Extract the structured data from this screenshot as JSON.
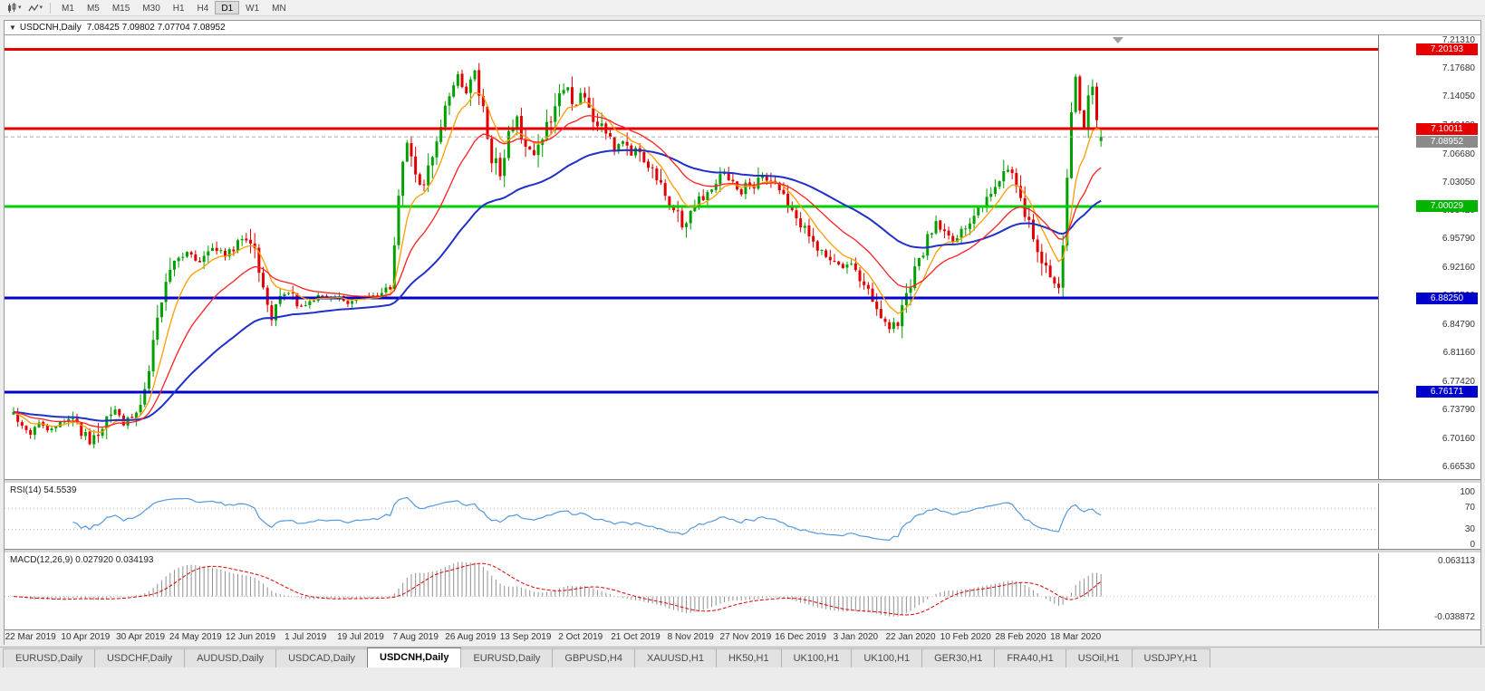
{
  "toolbar": {
    "timeframes": [
      "M1",
      "M5",
      "M15",
      "M30",
      "H1",
      "H4",
      "D1",
      "W1",
      "MN"
    ],
    "active_timeframe": "D1"
  },
  "chart": {
    "collapse_marker": "▼",
    "symbol_period": "USDCNH,Daily",
    "ohlc_text": "7.08425 7.09802 7.07704 7.08952",
    "open": "7.08425",
    "high": "7.09802",
    "low": "7.07704",
    "close": "7.08952"
  },
  "price_scale": {
    "ticks": [
      {
        "label": "7.21310",
        "price": 7.2131
      },
      {
        "label": "7.17680",
        "price": 7.1768
      },
      {
        "label": "7.14050",
        "price": 7.1405
      },
      {
        "label": "7.10420",
        "price": 7.1042
      },
      {
        "label": "7.06680",
        "price": 7.0668
      },
      {
        "label": "7.03050",
        "price": 7.0305
      },
      {
        "label": "6.99420",
        "price": 6.9942
      },
      {
        "label": "6.95790",
        "price": 6.9579
      },
      {
        "label": "6.92160",
        "price": 6.9216
      },
      {
        "label": "6.88530",
        "price": 6.8853
      },
      {
        "label": "6.84790",
        "price": 6.8479
      },
      {
        "label": "6.81160",
        "price": 6.8116
      },
      {
        "label": "6.77420",
        "price": 6.7742
      },
      {
        "label": "6.73790",
        "price": 6.7379
      },
      {
        "label": "6.70160",
        "price": 6.7016
      },
      {
        "label": "6.66530",
        "price": 6.6653
      }
    ],
    "badges": [
      {
        "label": "7.20193",
        "price": 7.20193,
        "bg": "#e60000",
        "fg": "#ffffff"
      },
      {
        "label": "7.10011",
        "price": 7.10011,
        "bg": "#e60000",
        "fg": "#ffffff"
      },
      {
        "label": "7.08952",
        "price": 7.08952,
        "bg": "#8a8a8a",
        "fg": "#ffffff"
      },
      {
        "label": "7.00029",
        "price": 7.00029,
        "bg": "#00b400",
        "fg": "#ffffff"
      },
      {
        "label": "6.88250",
        "price": 6.8825,
        "bg": "#0000cd",
        "fg": "#ffffff"
      },
      {
        "label": "6.76171",
        "price": 6.76171,
        "bg": "#0000cd",
        "fg": "#ffffff"
      }
    ]
  },
  "indicators": {
    "rsi": {
      "name": "RSI(14)",
      "value": "54.5539",
      "levels": [
        {
          "label": "100",
          "v": 100
        },
        {
          "label": "70",
          "v": 70
        },
        {
          "label": "30",
          "v": 30
        },
        {
          "label": "0",
          "v": 0
        }
      ]
    },
    "macd": {
      "name": "MACD(12,26,9)",
      "value": "0.027920 0.034193",
      "scale": [
        {
          "label": "0.063113",
          "v": 0.063113
        },
        {
          "label": "-0.038872",
          "v": -0.038872
        }
      ]
    }
  },
  "x_axis": {
    "labels": [
      {
        "label": "22 Mar 2019",
        "i": 4
      },
      {
        "label": "10 Apr 2019",
        "i": 17
      },
      {
        "label": "30 Apr 2019",
        "i": 30
      },
      {
        "label": "24 May 2019",
        "i": 43
      },
      {
        "label": "12 Jun 2019",
        "i": 56
      },
      {
        "label": "1 Jul 2019",
        "i": 69
      },
      {
        "label": "19 Jul 2019",
        "i": 82
      },
      {
        "label": "7 Aug 2019",
        "i": 95
      },
      {
        "label": "26 Aug 2019",
        "i": 108
      },
      {
        "label": "13 Sep 2019",
        "i": 121
      },
      {
        "label": "2 Oct 2019",
        "i": 134
      },
      {
        "label": "21 Oct 2019",
        "i": 147
      },
      {
        "label": "8 Nov 2019",
        "i": 160
      },
      {
        "label": "27 Nov 2019",
        "i": 173
      },
      {
        "label": "16 Dec 2019",
        "i": 186
      },
      {
        "label": "3 Jan 2020",
        "i": 199
      },
      {
        "label": "22 Jan 2020",
        "i": 212
      },
      {
        "label": "10 Feb 2020",
        "i": 225
      },
      {
        "label": "28 Feb 2020",
        "i": 238
      },
      {
        "label": "18 Mar 2020",
        "i": 251
      }
    ]
  },
  "tabs": {
    "active_index": 4,
    "items": [
      {
        "label": "EURUSD,Daily"
      },
      {
        "label": "USDCHF,Daily"
      },
      {
        "label": "AUDUSD,Daily"
      },
      {
        "label": "USDCAD,Daily"
      },
      {
        "label": "USDCNH,Daily"
      },
      {
        "label": "EURUSD,Daily"
      },
      {
        "label": "GBPUSD,H4"
      },
      {
        "label": "XAUUSD,H1"
      },
      {
        "label": "HK50,H1"
      },
      {
        "label": "UK100,H1"
      },
      {
        "label": "UK100,H1"
      },
      {
        "label": "GER30,H1"
      },
      {
        "label": "FRA40,H1"
      },
      {
        "label": "USOil,H1"
      },
      {
        "label": "USDJPY,H1"
      }
    ]
  },
  "chart_data": {
    "type": "candlestick",
    "symbol": "USDCNH",
    "timeframe": "Daily",
    "candle_count": 258,
    "price_range": [
      6.65,
      7.22
    ],
    "up_color": "#00a000",
    "down_color": "#e00000",
    "current_price": 7.08952,
    "hlines": [
      {
        "price": 7.20193,
        "color": "#e60000",
        "width": 3
      },
      {
        "price": 7.10011,
        "color": "#e60000",
        "width": 3
      },
      {
        "price": 7.00029,
        "color": "#00d000",
        "width": 3
      },
      {
        "price": 6.8825,
        "color": "#0000cd",
        "width": 3
      },
      {
        "price": 6.76171,
        "color": "#0000cd",
        "width": 3
      }
    ],
    "moving_averages": [
      {
        "period": 8,
        "type": "ema",
        "color": "#ff9c00"
      },
      {
        "period": 55,
        "type": "ema",
        "color": "#2030c8"
      },
      {
        "period": 21,
        "type": "ema",
        "color": "#ff2020"
      }
    ],
    "rsi_period": 14,
    "rsi_levels": [
      70,
      30
    ],
    "rsi_color": "#5599dd",
    "macd_params": {
      "fast": 12,
      "slow": 26,
      "signal": 9
    },
    "macd_bar_color": "#909090",
    "macd_signal_color": "#dd0000",
    "close_path": [
      [
        0,
        6.737
      ],
      [
        2,
        6.718
      ],
      [
        4,
        6.708
      ],
      [
        6,
        6.722
      ],
      [
        8,
        6.714
      ],
      [
        10,
        6.72
      ],
      [
        13,
        6.728
      ],
      [
        16,
        6.712
      ],
      [
        18,
        6.695
      ],
      [
        20,
        6.712
      ],
      [
        22,
        6.73
      ],
      [
        24,
        6.742
      ],
      [
        26,
        6.722
      ],
      [
        28,
        6.73
      ],
      [
        30,
        6.738
      ],
      [
        32,
        6.792
      ],
      [
        34,
        6.862
      ],
      [
        36,
        6.908
      ],
      [
        38,
        6.928
      ],
      [
        41,
        6.94
      ],
      [
        44,
        6.93
      ],
      [
        47,
        6.948
      ],
      [
        50,
        6.938
      ],
      [
        53,
        6.952
      ],
      [
        55,
        6.958
      ],
      [
        57,
        6.938
      ],
      [
        59,
        6.895
      ],
      [
        61,
        6.858
      ],
      [
        63,
        6.88
      ],
      [
        65,
        6.888
      ],
      [
        68,
        6.872
      ],
      [
        71,
        6.882
      ],
      [
        75,
        6.885
      ],
      [
        79,
        6.878
      ],
      [
        83,
        6.882
      ],
      [
        87,
        6.885
      ],
      [
        89,
        6.898
      ],
      [
        90,
        6.952
      ],
      [
        91,
        7.022
      ],
      [
        93,
        7.085
      ],
      [
        95,
        7.042
      ],
      [
        97,
        7.028
      ],
      [
        99,
        7.062
      ],
      [
        101,
        7.105
      ],
      [
        103,
        7.148
      ],
      [
        105,
        7.172
      ],
      [
        107,
        7.148
      ],
      [
        109,
        7.178
      ],
      [
        111,
        7.125
      ],
      [
        113,
        7.065
      ],
      [
        115,
        7.042
      ],
      [
        117,
        7.095
      ],
      [
        119,
        7.118
      ],
      [
        121,
        7.072
      ],
      [
        123,
        7.062
      ],
      [
        125,
        7.092
      ],
      [
        127,
        7.112
      ],
      [
        129,
        7.138
      ],
      [
        131,
        7.152
      ],
      [
        133,
        7.128
      ],
      [
        134,
        7.142
      ],
      [
        136,
        7.128
      ],
      [
        138,
        7.108
      ],
      [
        140,
        7.092
      ],
      [
        142,
        7.075
      ],
      [
        144,
        7.085
      ],
      [
        146,
        7.068
      ],
      [
        147,
        7.078
      ],
      [
        149,
        7.062
      ],
      [
        151,
        7.048
      ],
      [
        153,
        7.028
      ],
      [
        155,
        7.008
      ],
      [
        157,
        6.985
      ],
      [
        158,
        6.972
      ],
      [
        160,
        6.992
      ],
      [
        162,
        7.008
      ],
      [
        164,
        7.022
      ],
      [
        166,
        7.032
      ],
      [
        168,
        7.042
      ],
      [
        170,
        7.028
      ],
      [
        172,
        7.018
      ],
      [
        173,
        7.032
      ],
      [
        175,
        7.028
      ],
      [
        177,
        7.042
      ],
      [
        179,
        7.032
      ],
      [
        181,
        7.018
      ],
      [
        183,
        7.002
      ],
      [
        185,
        6.985
      ],
      [
        186,
        6.975
      ],
      [
        188,
        6.962
      ],
      [
        190,
        6.948
      ],
      [
        192,
        6.938
      ],
      [
        194,
        6.928
      ],
      [
        196,
        6.918
      ],
      [
        198,
        6.925
      ],
      [
        199,
        6.915
      ],
      [
        201,
        6.898
      ],
      [
        203,
        6.878
      ],
      [
        205,
        6.862
      ],
      [
        207,
        6.845
      ],
      [
        209,
        6.852
      ],
      [
        211,
        6.882
      ],
      [
        212,
        6.902
      ],
      [
        214,
        6.932
      ],
      [
        216,
        6.958
      ],
      [
        218,
        6.978
      ],
      [
        220,
        6.968
      ],
      [
        222,
        6.958
      ],
      [
        224,
        6.972
      ],
      [
        225,
        6.978
      ],
      [
        227,
        6.988
      ],
      [
        229,
        6.998
      ],
      [
        231,
        7.012
      ],
      [
        233,
        7.028
      ],
      [
        235,
        7.048
      ],
      [
        237,
        7.022
      ],
      [
        238,
        7.002
      ],
      [
        240,
        6.975
      ],
      [
        242,
        6.945
      ],
      [
        245,
        6.902
      ],
      [
        247,
        6.895
      ],
      [
        248,
        6.955
      ],
      [
        249,
        7.035
      ],
      [
        250,
        7.125
      ],
      [
        251,
        7.165
      ],
      [
        252,
        7.128
      ],
      [
        253,
        7.105
      ],
      [
        254,
        7.135
      ],
      [
        255,
        7.148
      ],
      [
        256,
        7.112
      ],
      [
        257,
        7.0895
      ]
    ]
  }
}
